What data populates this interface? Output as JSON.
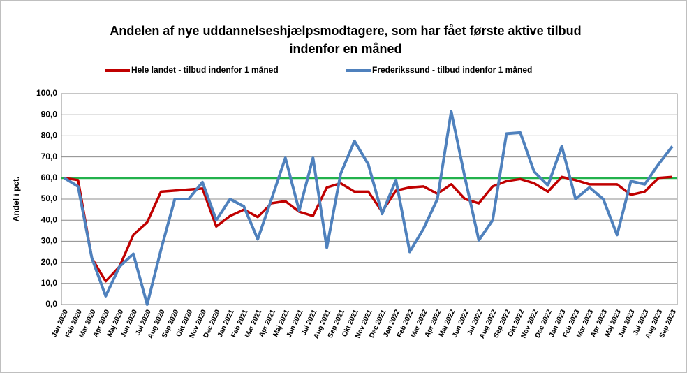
{
  "chart_data": {
    "type": "line",
    "title": "Andelen af nye uddannelseshjælpsmodtagere, som har fået første aktive tilbud",
    "subtitle": "indenfor en måned",
    "y_label": "Andel i pct.",
    "categories": [
      "Jan 2020",
      "Feb 2020",
      "Mar 2020",
      "Apr 2020",
      "Maj 2020",
      "Jun 2020",
      "Jul 2020",
      "Aug 2020",
      "Sep 2020",
      "Okt 2020",
      "Nov 2020",
      "Dec 2020",
      "Jan 2021",
      "Feb 2021",
      "Mar 2021",
      "Apr 2021",
      "Maj 2021",
      "Jun 2021",
      "Jul 2021",
      "Aug 2021",
      "Sep 2021",
      "Okt 2021",
      "Nov 2021",
      "Dec 2021",
      "Jan 2022",
      "Feb 2022",
      "Mar 2022",
      "Apr 2022",
      "Maj 2022",
      "Jun 2022",
      "Jul 2022",
      "Aug 2022",
      "Sep 2022",
      "Okt 2022",
      "Nov 2022",
      "Dec 2022",
      "Jan 2023",
      "Feb 2023",
      "Mar 2023",
      "Apr 2023",
      "Maj 2023",
      "Jun 2023",
      "Jul 2023",
      "Aug 2023",
      "Sep 2023"
    ],
    "series": [
      {
        "name": "Hele landet - tilbud indenfor 1 måned",
        "color": "#c00000",
        "values": [
          60,
          59,
          22,
          11,
          18,
          33,
          39,
          53.5,
          54,
          54.5,
          55,
          37,
          42,
          45,
          41.5,
          48,
          49,
          44,
          42,
          55.5,
          57.5,
          53.5,
          53.5,
          44,
          54,
          55.5,
          56,
          52.5,
          57,
          50,
          48,
          56,
          58.5,
          59.5,
          57.5,
          53.5,
          60.5,
          59,
          57,
          57,
          57,
          52,
          53.5,
          60,
          60.5
        ]
      },
      {
        "name": "Frederikssund - tilbud indenfor 1 måned",
        "color": "#4f81bd",
        "values": [
          60,
          56,
          22,
          4,
          18,
          24,
          0,
          26,
          50,
          50,
          58,
          40,
          50,
          46.5,
          31,
          50,
          69.5,
          44.5,
          69.5,
          27,
          62,
          77.5,
          66.5,
          43,
          59,
          25,
          36,
          50,
          91.5,
          60,
          30.5,
          40,
          81,
          81.5,
          63,
          56.5,
          75,
          50,
          55.5,
          50,
          33,
          58.5,
          57,
          66.5,
          75
        ]
      }
    ],
    "reference_line": {
      "value": 60,
      "color": "#22b14c"
    },
    "ylim": [
      0,
      100
    ],
    "yticks": [
      {
        "value": 0,
        "label": "0,0"
      },
      {
        "value": 10,
        "label": "10,0"
      },
      {
        "value": 20,
        "label": "20,0"
      },
      {
        "value": 30,
        "label": "30,0"
      },
      {
        "value": 40,
        "label": "40,0"
      },
      {
        "value": 50,
        "label": "50,0"
      },
      {
        "value": 60,
        "label": "60,0"
      },
      {
        "value": 70,
        "label": "70,0"
      },
      {
        "value": 80,
        "label": "80,0"
      },
      {
        "value": 90,
        "label": "90,0"
      },
      {
        "value": 100,
        "label": "100,0"
      }
    ],
    "grid": true
  }
}
